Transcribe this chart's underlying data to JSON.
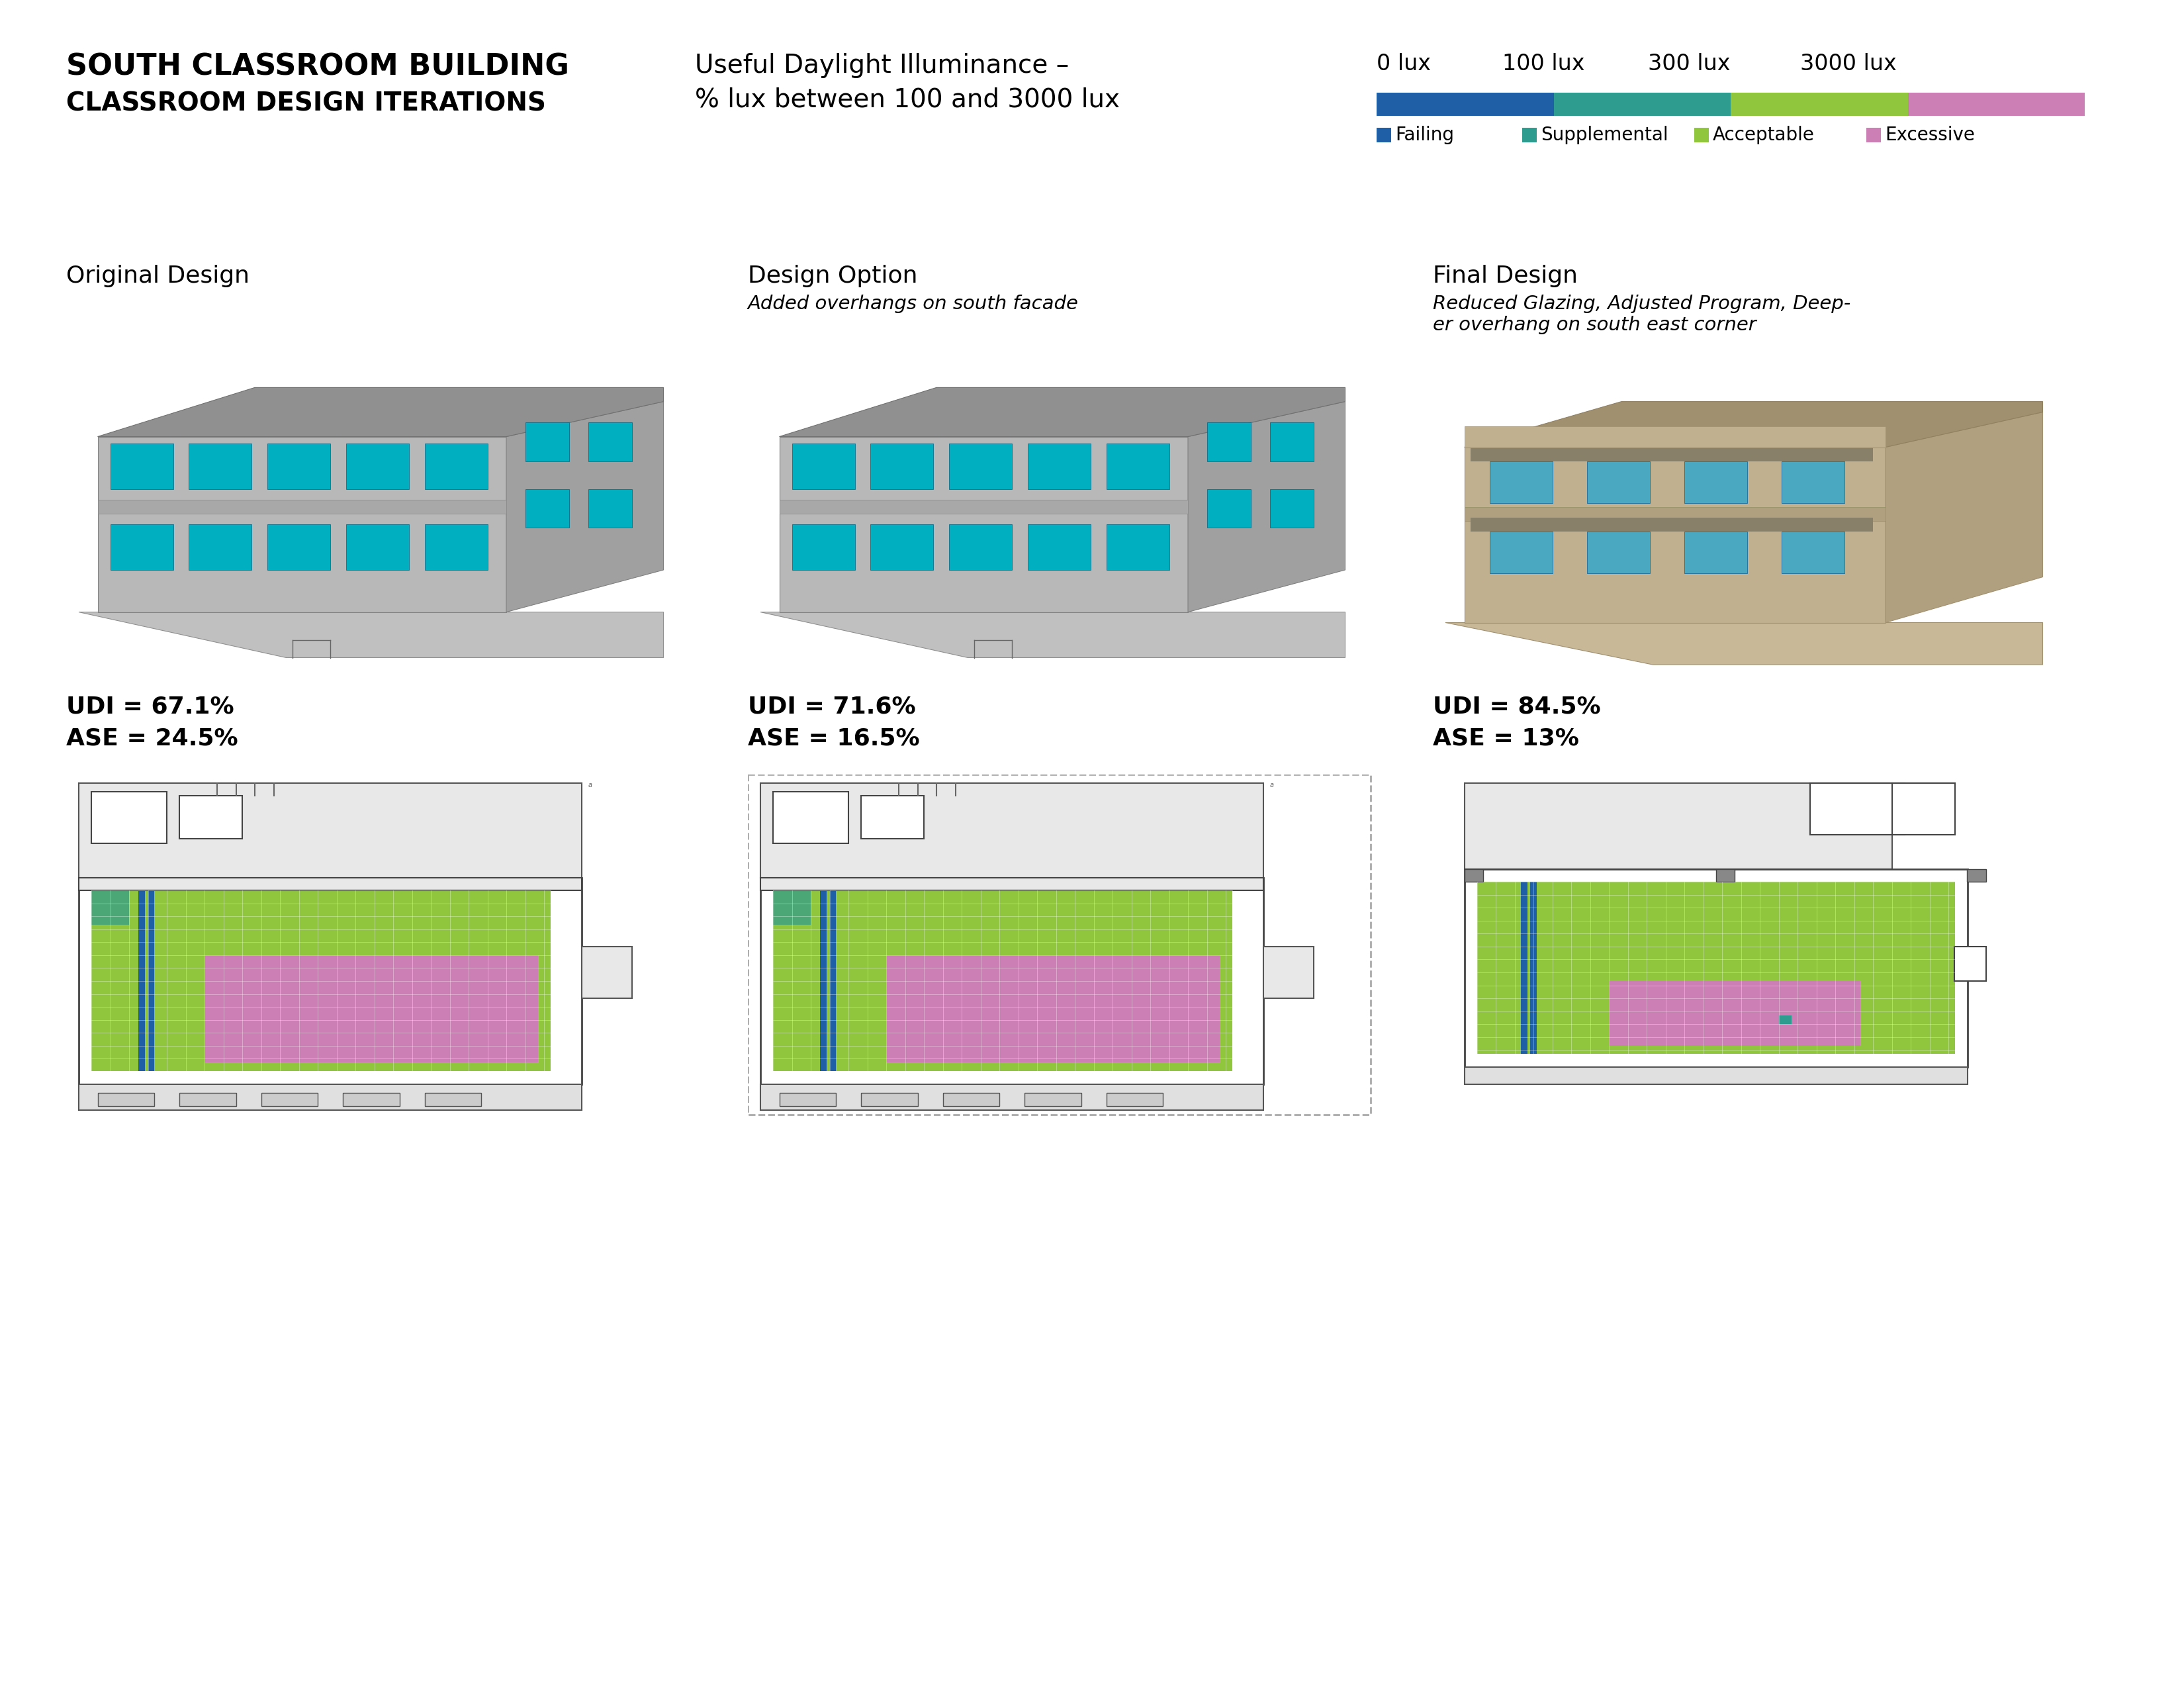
{
  "title_line1": "SOUTH CLASSROOM BUILDING",
  "title_line2": "CLASSROOM DESIGN ITERATIONS",
  "subtitle_line1": "Useful Daylight Illuminance –",
  "subtitle_line2": "% lux between 100 and 3000 lux",
  "scale_labels": [
    "0 lux",
    "100 lux",
    "300 lux",
    "3000 lux"
  ],
  "legend_items": [
    {
      "label": "Failing",
      "color": "#1f5fa6"
    },
    {
      "label": "Supplemental",
      "color": "#2e9c8f"
    },
    {
      "label": "Acceptable",
      "color": "#8fc63e"
    },
    {
      "label": "Excessive",
      "color": "#cc7fb5"
    }
  ],
  "colorbar_segments": [
    "#1f5fa6",
    "#1f5fa6",
    "#2e9c8f",
    "#2e9c8f",
    "#8fc63e",
    "#8fc63e",
    "#cc7fb5",
    "#cc7fb5"
  ],
  "designs": [
    {
      "name": "Original Design",
      "subtitle": "",
      "udi": "UDI = 67.1%",
      "ase": "ASE = 24.5%"
    },
    {
      "name": "Design Option",
      "subtitle": "Added overhangs on south facade",
      "udi": "UDI = 71.6%",
      "ase": "ASE = 16.5%"
    },
    {
      "name": "Final Design",
      "subtitle": "Reduced Glazing, Adjusted Program, Deep-\ner overhang on south east corner",
      "udi": "UDI = 84.5%",
      "ase": "ASE = 13%"
    }
  ],
  "background_color": "#ffffff",
  "text_color": "#000000",
  "fp_green": "#8fc63e",
  "fp_pink": "#cc7fb5",
  "fp_blue": "#1f5fa6",
  "fp_cyan": "#2e9c8f",
  "fp_gray_light": "#e8e8e8",
  "fp_gray_mid": "#cccccc",
  "fp_gray_dark": "#999999",
  "building_gray": "#b0b0b0",
  "building_light": "#d0d0d0",
  "building_teal": "#00b0c0",
  "building_brown": "#c8a882"
}
